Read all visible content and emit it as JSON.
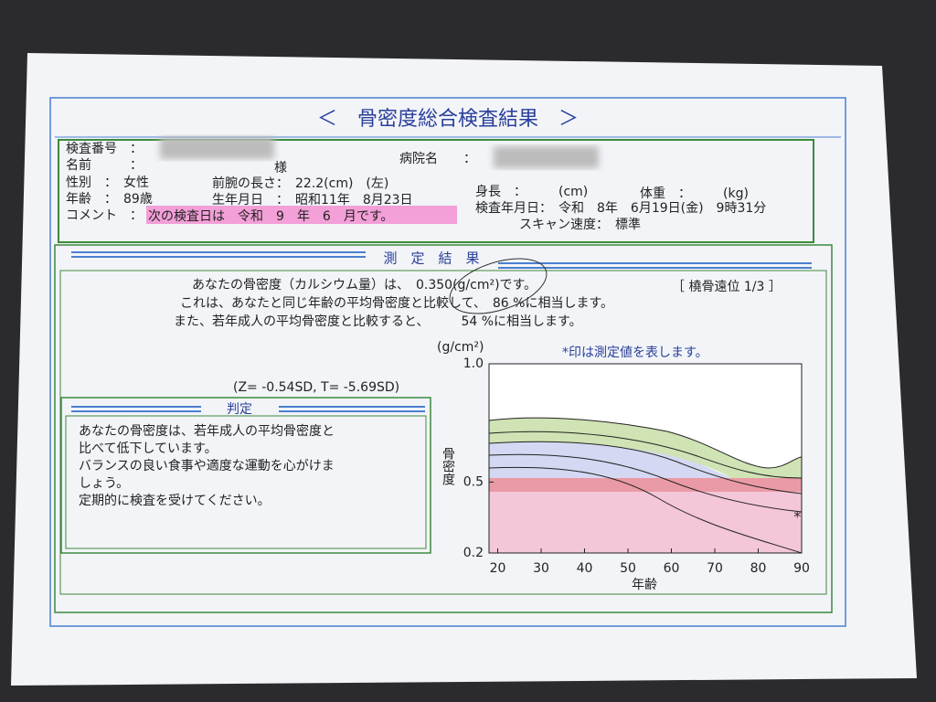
{
  "title": "＜　骨密度総合検査結果　＞",
  "patient": {
    "exam_number": "検査番号　：",
    "name": "名前　　　：",
    "name_suffix": "様",
    "sex": "性別　：　女性",
    "forearm": "前腕の長さ：　22.2(cm)　(左)",
    "age": "年齢　：　89歳",
    "birth": "生年月日　：　昭和11年　8月23日",
    "comment_label": "コメント　：",
    "comment": "次の検査日は　令和　9　年　6　月です。",
    "hospital": "病院名　　：",
    "height": "身長　：　　　(cm)",
    "weight": "体重　：　　　(kg)",
    "exam_date": "検査年月日：　令和　8年　6月19日(金)　9時31分",
    "scan_speed": "スキャン速度：　標準"
  },
  "results": {
    "header": "測　定　結　果",
    "line1": "あなたの骨密度（カルシウム量）は、　0.350(g/cm²)です。",
    "site": "［ 橈骨遠位 1/3 ］",
    "line2": "これは、あなたと同じ年齢の平均骨密度と比較して、　86 %に相当します。",
    "line3": "また、若年成人の平均骨密度と比較すると、　　　54 %に相当します。",
    "scores": "(Z= -0.54SD,  T= -5.69SD)"
  },
  "judgement": {
    "header": "判定",
    "lines": [
      "あなたの骨密度は、若年成人の平均骨密度と",
      "比べて低下しています。",
      "バランスの良い食事や適度な運動を心がけま",
      "しょう。",
      "定期的に検査を受けてください。"
    ]
  },
  "graph": {
    "unit": "(g/cm²)",
    "note": "*印は測定値を表します。",
    "ylabel": "骨密度",
    "xlabel": "年齢",
    "xlim": [
      18,
      90
    ],
    "ylim": [
      0.2,
      1.0
    ],
    "xticks": [
      20,
      30,
      40,
      50,
      60,
      70,
      80,
      90
    ],
    "yticks": [
      {
        "value": 1.0,
        "label": "1.0"
      },
      0.5,
      0.2
    ],
    "marker": "*",
    "marker_x": 89,
    "marker_y": 0.35
  }
}
